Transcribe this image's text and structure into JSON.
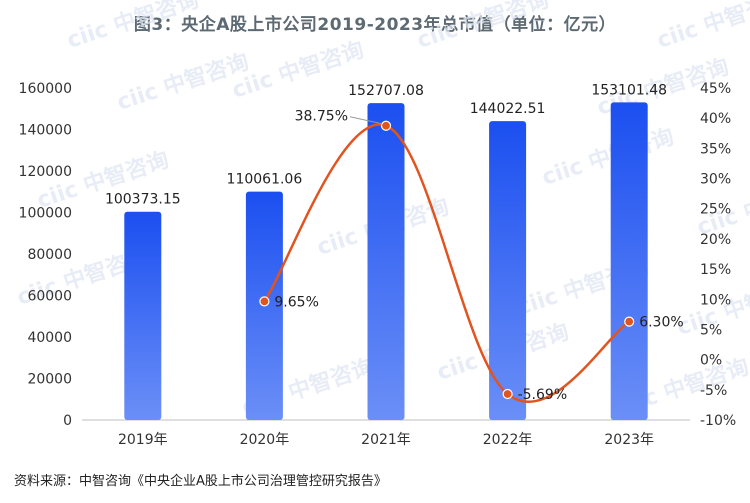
{
  "chart_data": {
    "type": "bar",
    "title": "图3：央企A股上市公司2019-2023年总市值（单位：亿元）",
    "categories": [
      "2019年",
      "2020年",
      "2021年",
      "2022年",
      "2023年"
    ],
    "series": [
      {
        "type": "bar",
        "values": [
          100373.15,
          110061.06,
          152707.08,
          144022.51,
          153101.48
        ],
        "labels": [
          "100373.15",
          "110061.06",
          "152707.08",
          "144022.51",
          "153101.48"
        ]
      },
      {
        "type": "line",
        "axis": "right",
        "values": [
          null,
          9.65,
          38.75,
          -5.69,
          6.3
        ],
        "labels": [
          "",
          "9.65%",
          "38.75%",
          "-5.69%",
          "6.30%"
        ]
      }
    ],
    "y_left": {
      "ylim": [
        0,
        160000
      ],
      "ticks": [
        "0",
        "20000",
        "40000",
        "60000",
        "80000",
        "100000",
        "120000",
        "140000",
        "160000"
      ]
    },
    "y_right": {
      "ylim": [
        -10,
        45
      ],
      "ticks": [
        "-10%",
        "-5%",
        "0%",
        "5%",
        "10%",
        "15%",
        "20%",
        "25%",
        "30%",
        "35%",
        "40%",
        "45%"
      ]
    },
    "colors": {
      "bar_top": "#1b4ff0",
      "bar_bottom": "#6b8ff7",
      "line": "#e2541f",
      "marker": "#e2541f"
    }
  },
  "watermark": "ciic 中智咨询",
  "source": "资料来源：中智咨询《中央企业A股上市公司治理管控研究报告》"
}
